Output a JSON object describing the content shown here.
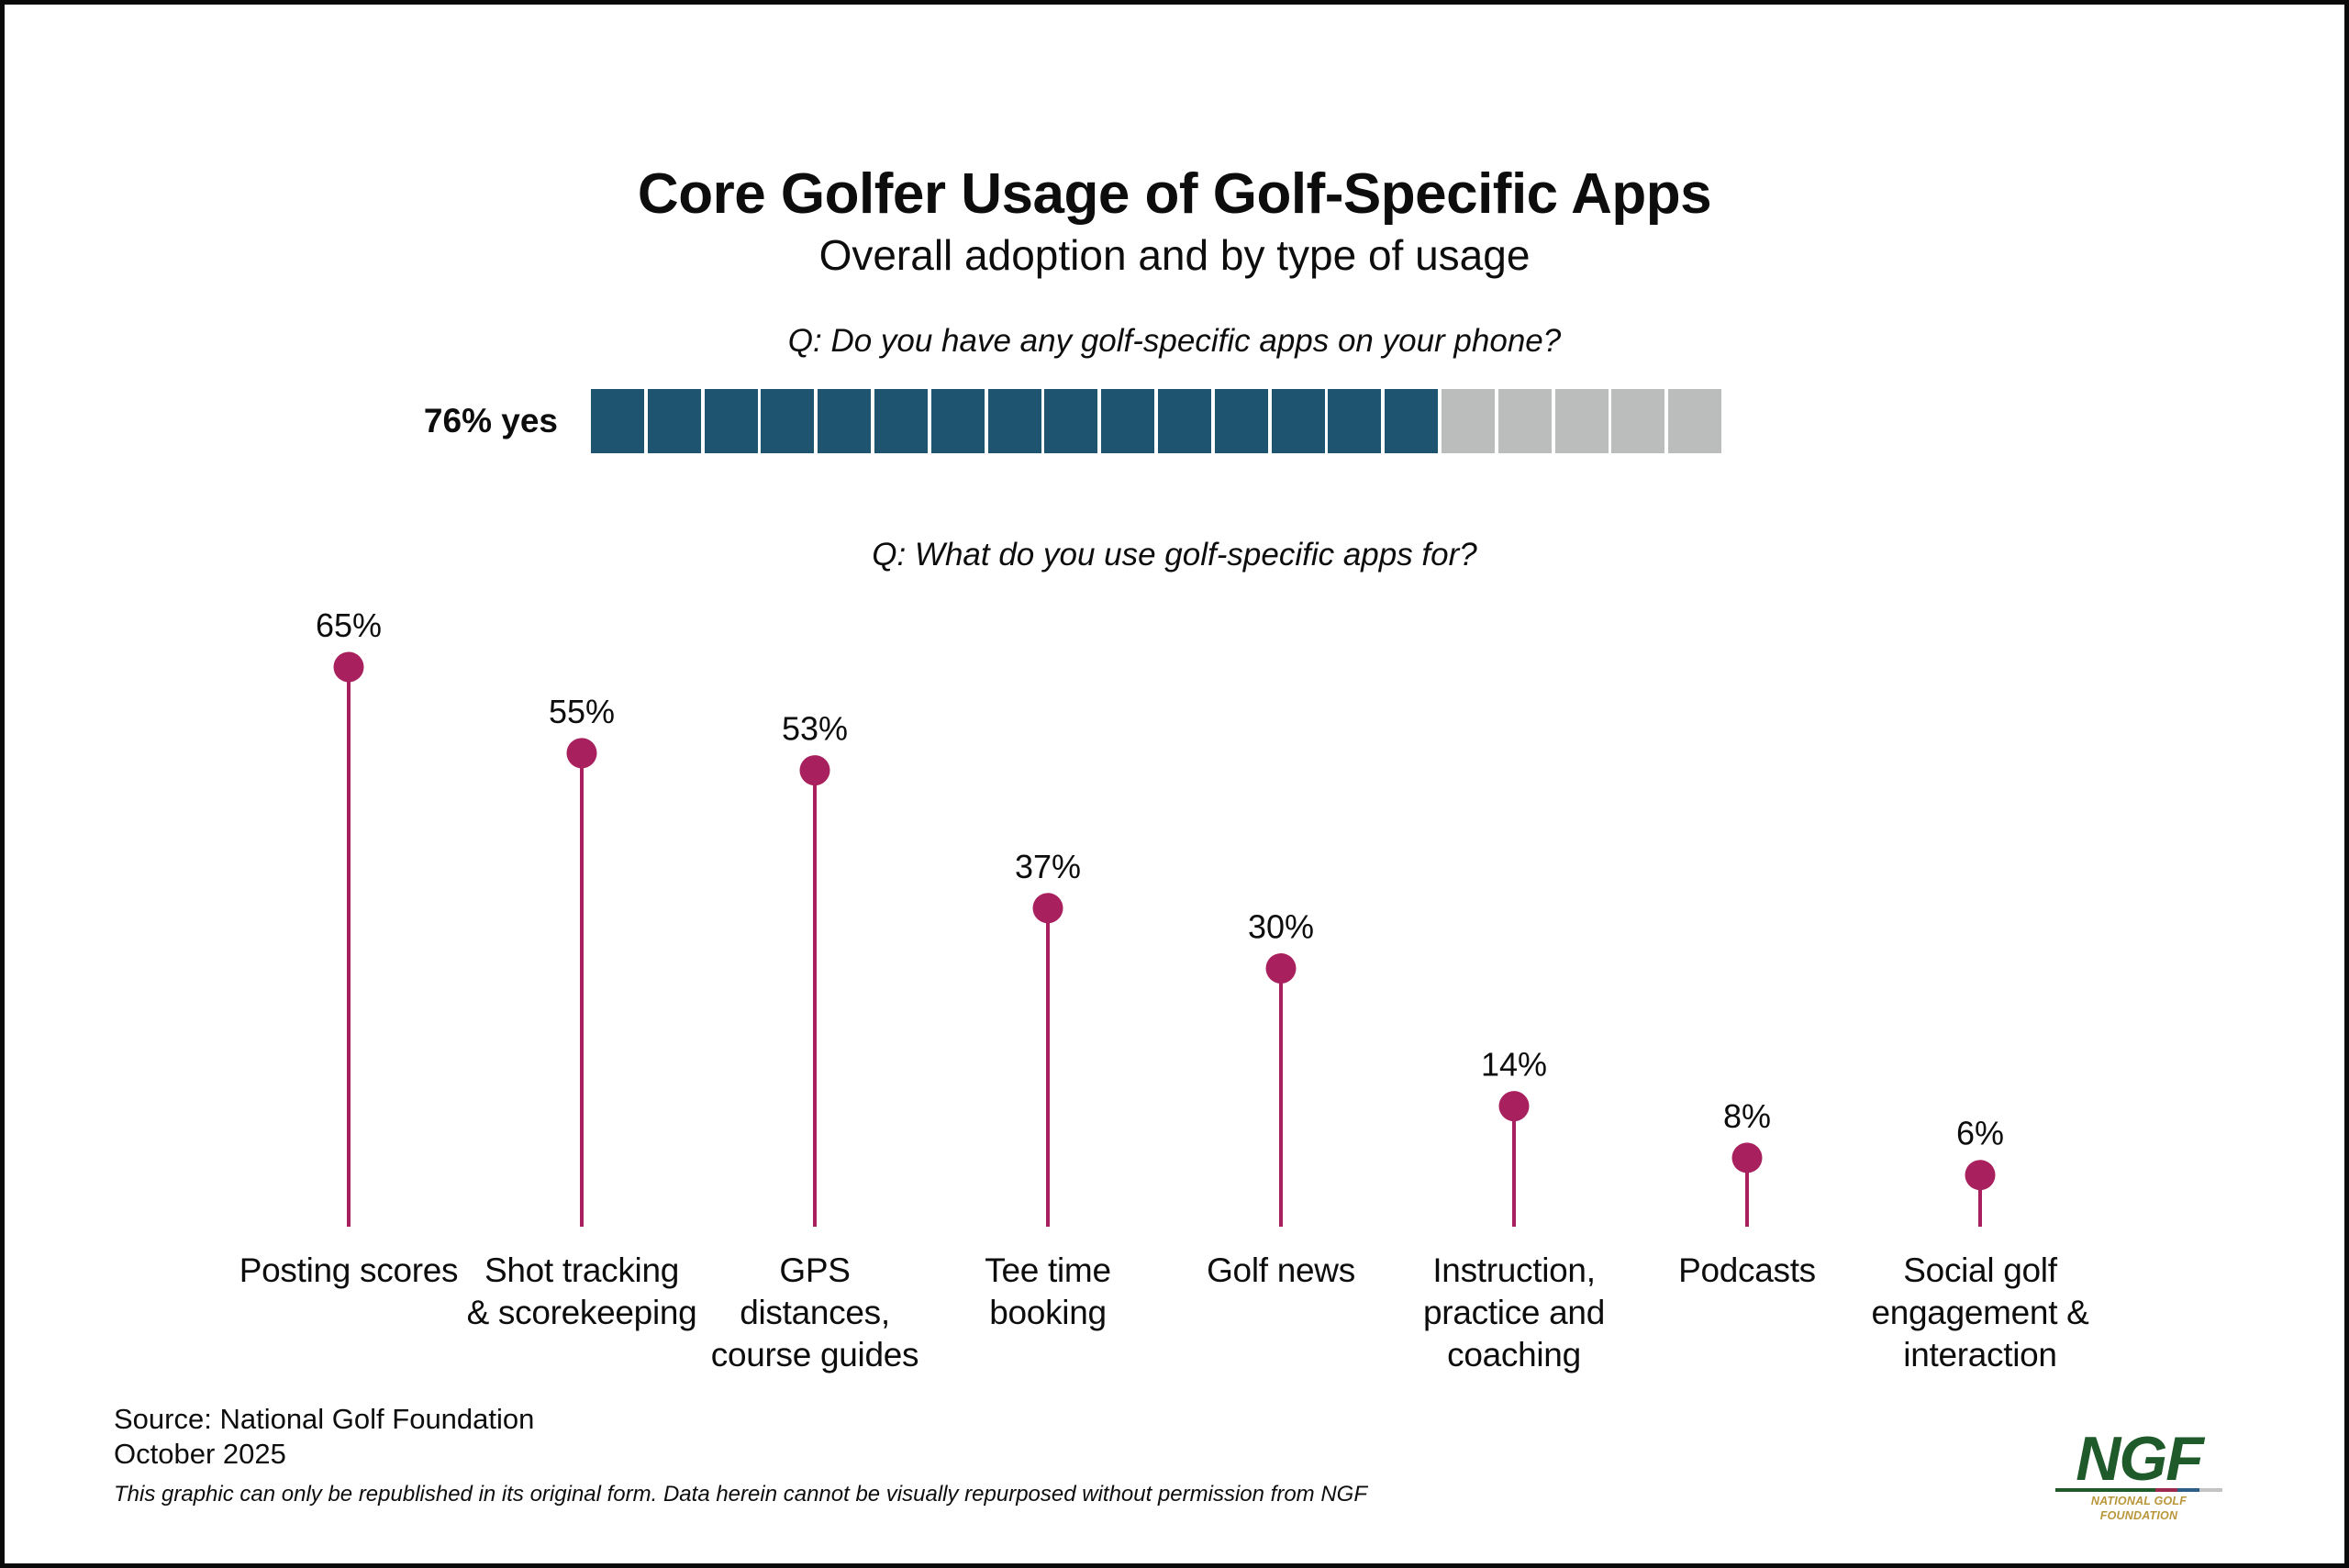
{
  "header": {
    "title": "Core Golfer Usage of Golf-Specific Apps",
    "subtitle": "Overall adoption and by type of usage"
  },
  "adoption": {
    "question": "Q: Do you have any golf-specific apps on your phone?",
    "label": "76% yes",
    "percent_yes": 76,
    "total_blocks": 20,
    "filled_blocks": 15,
    "filled_color": "#1f5470",
    "empty_color": "#bbbcbc"
  },
  "usage": {
    "question": "Q: What do you use golf-specific apps for?"
  },
  "chart_data": [
    {
      "type": "bar",
      "subtype": "waffle",
      "title": "Q: Do you have any golf-specific apps on your phone?",
      "categories": [
        "Yes",
        "No"
      ],
      "values": [
        76,
        24
      ],
      "data_label": "76% yes",
      "units": "%",
      "blocks": 20,
      "blocks_filled": 15,
      "colors": {
        "Yes": "#1f5470",
        "No": "#bbbcbc"
      }
    },
    {
      "type": "bar",
      "subtype": "lollipop",
      "title": "Q: What do you use golf-specific apps for?",
      "categories": [
        "Posting scores",
        "Shot tracking\n& scorekeeping",
        "GPS\ndistances,\ncourse guides",
        "Tee time\nbooking",
        "Golf news",
        "Instruction,\npractice and\ncoaching",
        "Podcasts",
        "Social golf\nengagement &\ninteraction"
      ],
      "values": [
        65,
        55,
        53,
        37,
        30,
        14,
        8,
        6
      ],
      "data_labels": [
        "65%",
        "55%",
        "53%",
        "37%",
        "30%",
        "14%",
        "8%",
        "6%"
      ],
      "xlabel": "",
      "ylabel": "",
      "ylim": [
        0,
        65
      ],
      "grid": false,
      "legend": "none",
      "color": "#a8205e"
    }
  ],
  "footer": {
    "source": "Source: National Golf Foundation",
    "date": "October 2025",
    "disclaimer": "This graphic can only be republished in its original form. Data herein cannot be visually repurposed without permission from NGF"
  },
  "logo": {
    "mark": "NGF",
    "name": "NATIONAL GOLF FOUNDATION",
    "mark_color": "#1f5a2a",
    "name_color": "#b8963a",
    "stripe_colors": [
      "#1f5a2a",
      "#9b2a4e",
      "#2e5f86",
      "#c4c4c4"
    ]
  }
}
